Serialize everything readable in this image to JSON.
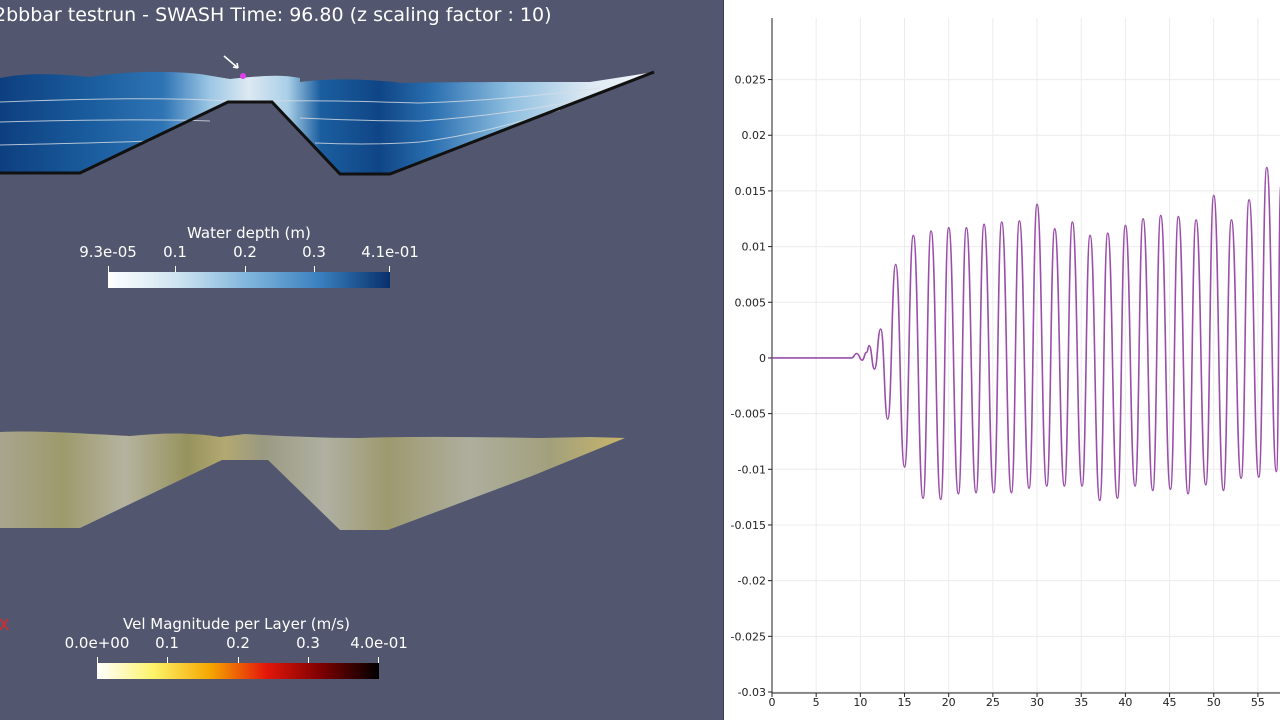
{
  "render": {
    "title": "2bbbar testrun - SWASH Time: 96.80 (z scaling factor : 10)",
    "orientation_label": "X"
  },
  "colorbars": {
    "water_depth": {
      "title": "Water depth (m)",
      "ticks": [
        "9.3e-05",
        "0.1",
        "0.2",
        "0.3",
        "4.1e-01"
      ],
      "colors": [
        "#ffffff",
        "#cde3f0",
        "#7fb5dc",
        "#3a80bf",
        "#08306b"
      ]
    },
    "velocity": {
      "title": "Vel Magnitude per Layer (m/s)",
      "ticks": [
        "0.0e+00",
        "0.1",
        "0.2",
        "0.3",
        "4.0e-01"
      ],
      "colors": [
        "#ffffff",
        "#fdf36a",
        "#f5a700",
        "#e4170b",
        "#7a0000",
        "#000000"
      ]
    }
  },
  "chart_data": {
    "type": "line",
    "title": "",
    "xlabel": "",
    "ylabel": "",
    "xlim": [
      0,
      57.5
    ],
    "ylim": [
      -0.03,
      0.028
    ],
    "x_ticks": [
      0,
      5,
      10,
      15,
      20,
      25,
      30,
      35,
      40,
      45,
      50,
      55
    ],
    "x_tick_labels": [
      "0",
      "5",
      "10",
      "15",
      "20",
      "25",
      "30",
      "35",
      "40",
      "45",
      "50",
      "55"
    ],
    "y_ticks": [
      0.025,
      0.02,
      0.015,
      0.01,
      0.005,
      0,
      -0.005,
      -0.01,
      -0.015,
      -0.02,
      -0.025,
      -0.03
    ],
    "y_tick_labels": [
      "0.025",
      "0.02",
      "0.015",
      "0.01",
      "0.005",
      "0",
      "-0.005",
      "-0.01",
      "-0.015",
      "-0.02",
      "-0.025",
      "-0.03"
    ],
    "grid": true,
    "series": [
      {
        "color": "#9b4ea9",
        "points": [
          [
            0,
            0
          ],
          [
            8,
            0
          ],
          [
            9,
            0.0
          ],
          [
            9.6,
            0.0004
          ],
          [
            10.2,
            -0.0002
          ],
          [
            10.7,
            0.0005
          ],
          [
            11.0,
            0.0011
          ],
          [
            11.6,
            -0.001
          ],
          [
            12.3,
            0.0026
          ],
          [
            13.1,
            -0.0055
          ],
          [
            14.0,
            0.0084
          ],
          [
            15.0,
            -0.0098
          ],
          [
            16.0,
            0.011
          ],
          [
            17.1,
            -0.0126
          ],
          [
            18.0,
            0.0114
          ],
          [
            19.1,
            -0.0127
          ],
          [
            20.0,
            0.0117
          ],
          [
            21.1,
            -0.0122
          ],
          [
            22.0,
            0.0117
          ],
          [
            23.1,
            -0.0121
          ],
          [
            24.0,
            0.012
          ],
          [
            25.1,
            -0.0121
          ],
          [
            26.0,
            0.0122
          ],
          [
            27.1,
            -0.0121
          ],
          [
            28.0,
            0.0123
          ],
          [
            29.1,
            -0.0117
          ],
          [
            30.0,
            0.0138
          ],
          [
            31.1,
            -0.0115
          ],
          [
            32.0,
            0.0116
          ],
          [
            33.1,
            -0.0115
          ],
          [
            34.0,
            0.0122
          ],
          [
            35.1,
            -0.0115
          ],
          [
            36.0,
            0.011
          ],
          [
            37.1,
            -0.0128
          ],
          [
            38.0,
            0.0112
          ],
          [
            39.1,
            -0.0126
          ],
          [
            40.0,
            0.0119
          ],
          [
            41.1,
            -0.0115
          ],
          [
            42.0,
            0.0125
          ],
          [
            43.1,
            -0.0119
          ],
          [
            44.0,
            0.0128
          ],
          [
            45.1,
            -0.0118
          ],
          [
            46.0,
            0.0127
          ],
          [
            47.1,
            -0.0122
          ],
          [
            48.0,
            0.0124
          ],
          [
            49.1,
            -0.0114
          ],
          [
            50.0,
            0.0146
          ],
          [
            51.1,
            -0.0119
          ],
          [
            52.0,
            0.0124
          ],
          [
            53.1,
            -0.0108
          ],
          [
            54.0,
            0.0142
          ],
          [
            55.1,
            -0.0107
          ],
          [
            56.0,
            0.0171
          ],
          [
            57.1,
            -0.0102
          ],
          [
            57.6,
            0.0155
          ]
        ]
      }
    ]
  }
}
